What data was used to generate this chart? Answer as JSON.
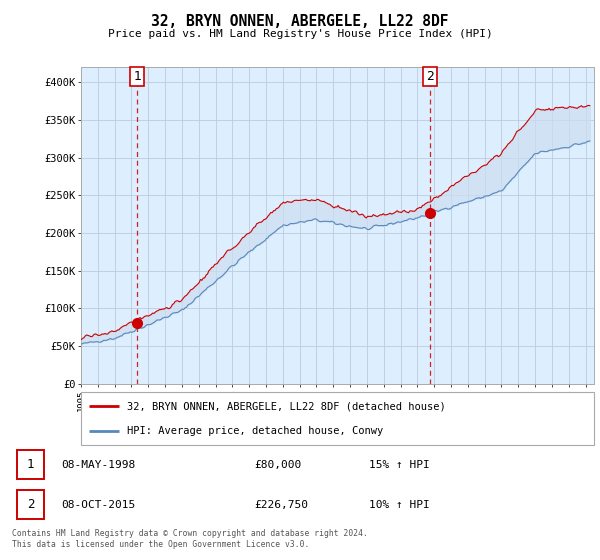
{
  "title": "32, BRYN ONNEN, ABERGELE, LL22 8DF",
  "subtitle": "Price paid vs. HM Land Registry's House Price Index (HPI)",
  "legend_label_red": "32, BRYN ONNEN, ABERGELE, LL22 8DF (detached house)",
  "legend_label_blue": "HPI: Average price, detached house, Conwy",
  "footnote": "Contains HM Land Registry data © Crown copyright and database right 2024.\nThis data is licensed under the Open Government Licence v3.0.",
  "annotation1_date": "08-MAY-1998",
  "annotation1_price": "£80,000",
  "annotation1_hpi": "15% ↑ HPI",
  "annotation2_date": "08-OCT-2015",
  "annotation2_price": "£226,750",
  "annotation2_hpi": "10% ↑ HPI",
  "xmin": 1995.0,
  "xmax": 2025.5,
  "ymin": 0,
  "ymax": 420000,
  "yticks": [
    0,
    50000,
    100000,
    150000,
    200000,
    250000,
    300000,
    350000,
    400000
  ],
  "ytick_labels": [
    "£0",
    "£50K",
    "£100K",
    "£150K",
    "£200K",
    "£250K",
    "£300K",
    "£350K",
    "£400K"
  ],
  "vline1_x": 1998.35,
  "vline2_x": 2015.77,
  "point1_x": 1998.35,
  "point1_y": 80000,
  "point2_x": 2015.77,
  "point2_y": 226750,
  "red_color": "#cc0000",
  "blue_color": "#5588bb",
  "fill_color": "#ccddf0",
  "vline_color": "#cc0000",
  "plot_bg_color": "#ddeeff",
  "grid_color": "#bbccdd",
  "spine_color": "#aaaaaa"
}
